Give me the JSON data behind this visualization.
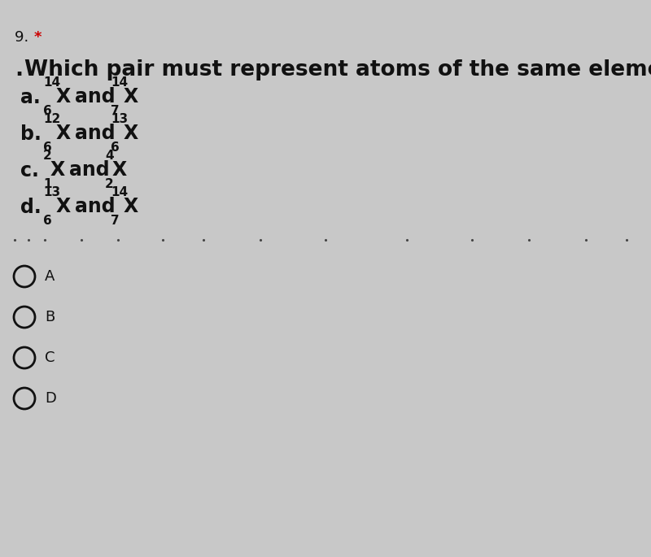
{
  "background_color": "#c8c8c8",
  "question_number": "9.",
  "star_color": "#cc0000",
  "question_text": "Which pair must represent atoms of the same element?",
  "options_data": [
    {
      "letter": "a.",
      "sup1": "14",
      "sub1": "6",
      "sup2": "14",
      "sub2": "7"
    },
    {
      "letter": "b.",
      "sup1": "12",
      "sub1": "6",
      "sup2": "13",
      "sub2": "6"
    },
    {
      "letter": "c.",
      "sup1": "2",
      "sub1": "1",
      "sup2": "4",
      "sub2": "2"
    },
    {
      "letter": "d.",
      "sup1": "13",
      "sub1": "6",
      "sup2": "14",
      "sub2": "7"
    }
  ],
  "radio_labels": [
    "A",
    "B",
    "C",
    "D"
  ],
  "fs_question": 19,
  "fs_option_letter": 17,
  "fs_base": 17,
  "fs_supscript": 11,
  "fs_number": 13,
  "fs_radio": 13,
  "text_color": "#111111",
  "radio_color": "#111111"
}
